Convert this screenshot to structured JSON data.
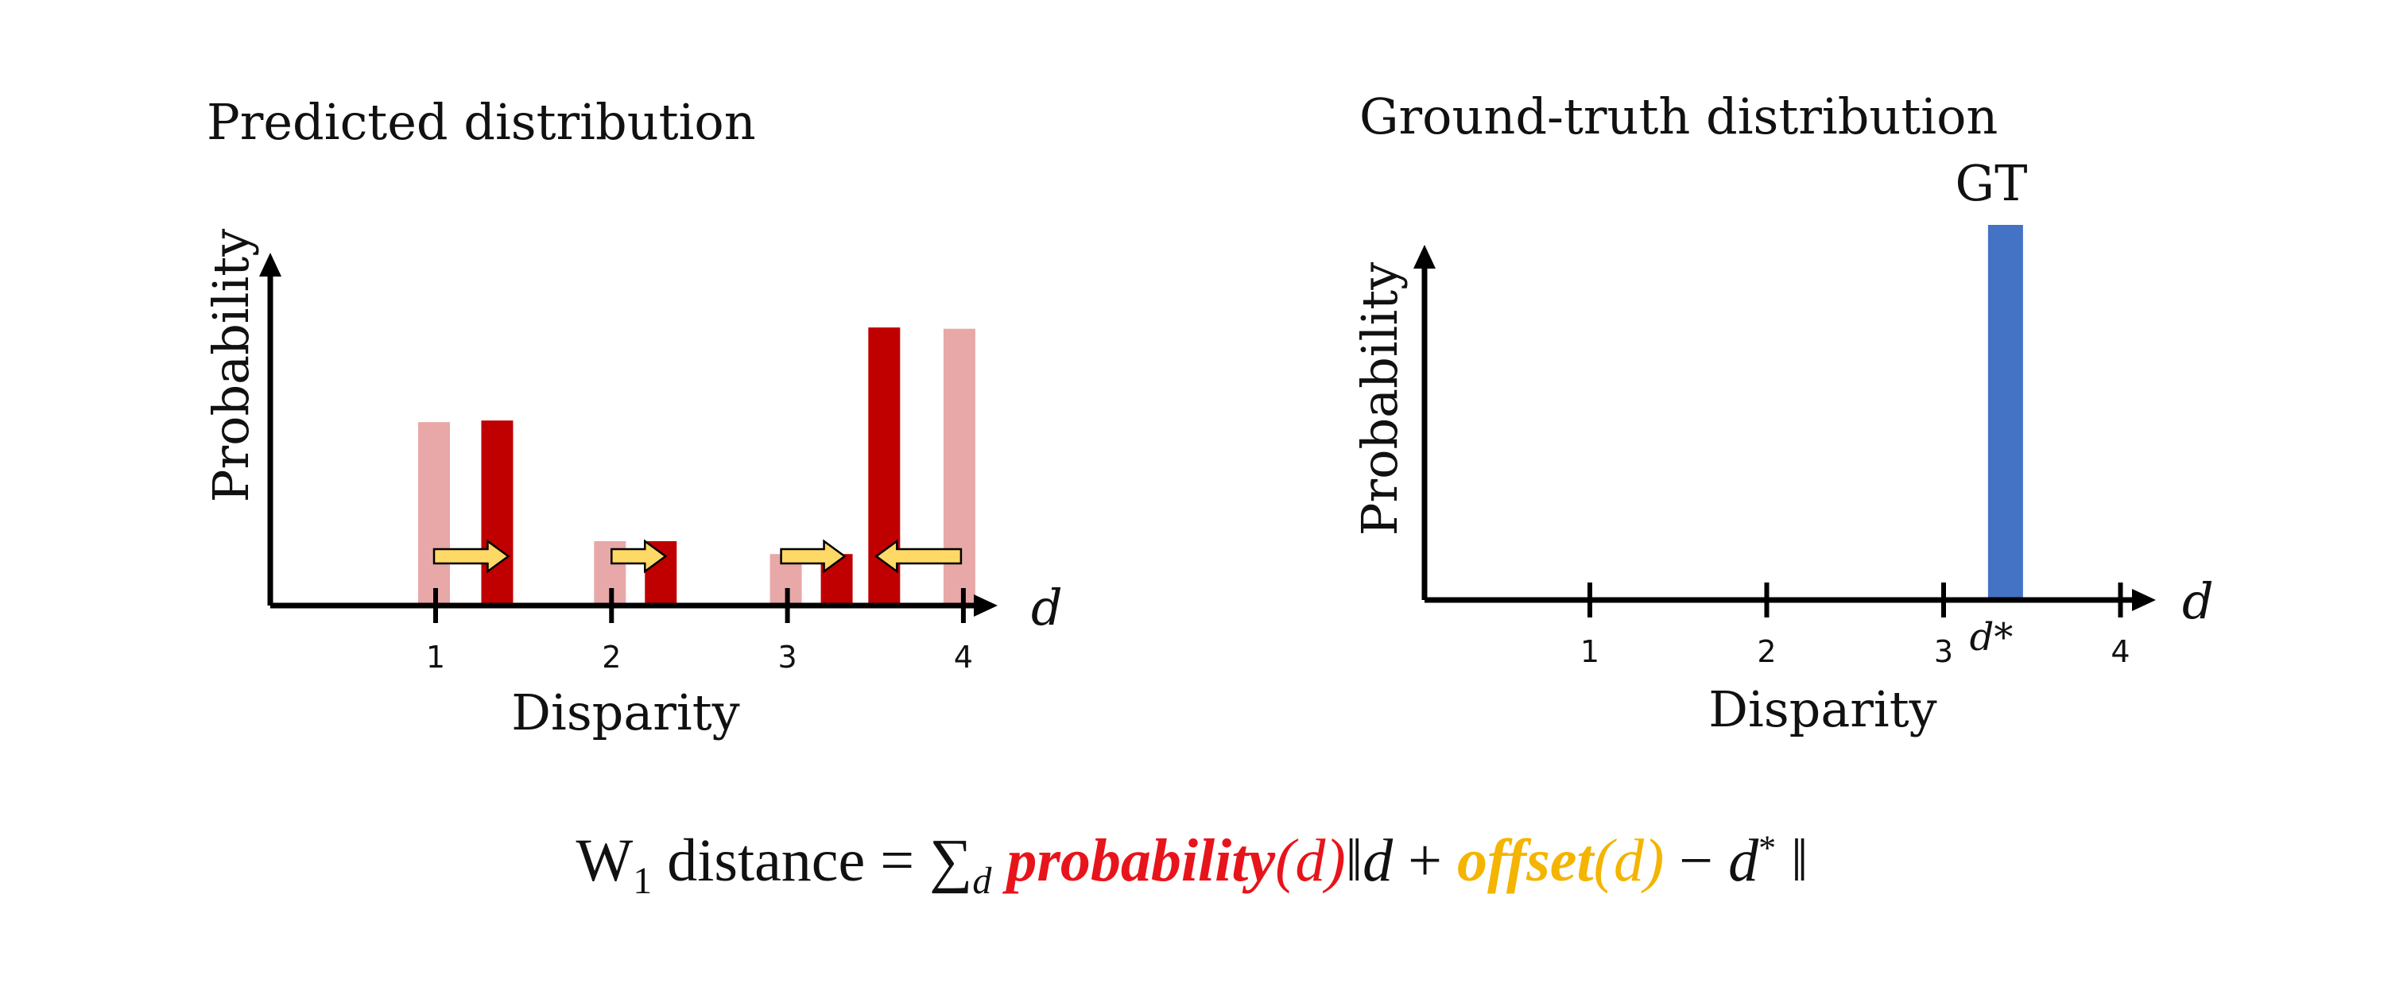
{
  "left_panel": {
    "title": "Predicted distribution",
    "ylabel": "Probability",
    "xlabel": "Disparity",
    "axis_var": "d",
    "ticks": [
      "1",
      "2",
      "3",
      "4"
    ]
  },
  "right_panel": {
    "title": "Ground-truth distribution",
    "ylabel": "Probability",
    "xlabel": "Disparity",
    "axis_var": "d",
    "ticks": [
      "1",
      "2",
      "3",
      "4"
    ],
    "gt_label": "GT",
    "gt_tick_label": "d*"
  },
  "formula": {
    "w": "W",
    "w_sub": "1",
    "distance_text": " distance = ",
    "sum": "∑",
    "sum_sub": "d",
    "probability": "probability",
    "open_paren": "(",
    "d1": "d",
    "close_paren": ")",
    "norm_open": "‖",
    "d2": "d",
    "plus": " + ",
    "offset": "offset",
    "open_paren2": "(",
    "d3": "d",
    "close_paren2": ")",
    "minus": " − ",
    "d4": "d",
    "star": "*",
    "norm_close": " ‖"
  },
  "colors": {
    "original_bar": "#e8a8a8",
    "shifted_bar": "#c00000",
    "arrow_fill": "#ffd966",
    "gt_bar": "#4472c4",
    "probability_text": "#e8141b",
    "offset_text": "#f4b400"
  },
  "chart_data": [
    {
      "type": "bar",
      "title": "Predicted distribution",
      "xlabel": "Disparity",
      "ylabel": "Probability",
      "categories": [
        "1",
        "2",
        "3",
        "4"
      ],
      "series": [
        {
          "values": [
            0.57,
            0.2,
            0.16,
            0.86
          ]
        },
        {
          "values": [
            0.57,
            0.2,
            0.16,
            0.86
          ]
        }
      ],
      "shifted_positions": [
        1.35,
        2.28,
        3.28,
        3.55
      ],
      "ylim": [
        0,
        1.12
      ]
    },
    {
      "type": "bar",
      "title": "Ground-truth distribution",
      "xlabel": "Disparity",
      "ylabel": "Probability",
      "categories": [
        "1",
        "2",
        "3",
        "4"
      ],
      "gt_position": 3.35,
      "gt_value": 1.2,
      "ylim": [
        0,
        1.12
      ]
    }
  ]
}
